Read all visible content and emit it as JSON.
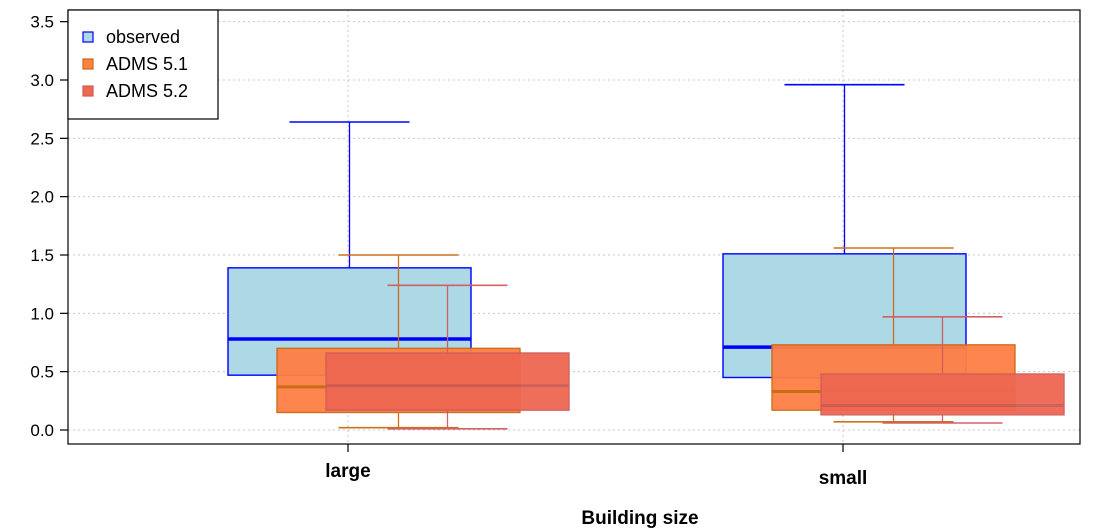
{
  "chart_data": {
    "type": "boxplot",
    "title": "",
    "xlabel": "Building size",
    "ylabel": "",
    "ylim": [
      -0.12,
      3.6
    ],
    "yticks": [
      0.0,
      0.5,
      1.0,
      1.5,
      2.0,
      2.5,
      3.0,
      3.5
    ],
    "categories": [
      "large",
      "small"
    ],
    "grid": true,
    "legend_position": "top-left",
    "series": [
      {
        "name": "observed",
        "fill": "#add8e6",
        "stroke": "#0000ff",
        "boxes": [
          {
            "min": 0.47,
            "q1": 0.47,
            "median": 0.78,
            "q3": 1.39,
            "max": 2.64
          },
          {
            "min": 0.45,
            "q1": 0.45,
            "median": 0.71,
            "q3": 1.51,
            "max": 2.96
          }
        ]
      },
      {
        "name": "ADMS 5.1",
        "fill": "#ff7f45",
        "stroke": "#cc6a10",
        "boxes": [
          {
            "min": 0.02,
            "q1": 0.15,
            "median": 0.37,
            "q3": 0.7,
            "max": 1.5
          },
          {
            "min": 0.07,
            "q1": 0.17,
            "median": 0.33,
            "q3": 0.73,
            "max": 1.56
          }
        ]
      },
      {
        "name": "ADMS 5.2",
        "fill": "#ee6751",
        "stroke": "#d05c5c",
        "boxes": [
          {
            "min": 0.01,
            "q1": 0.17,
            "median": 0.38,
            "q3": 0.66,
            "max": 1.24
          },
          {
            "min": 0.06,
            "q1": 0.13,
            "median": 0.21,
            "q3": 0.48,
            "max": 0.97
          }
        ]
      }
    ]
  }
}
